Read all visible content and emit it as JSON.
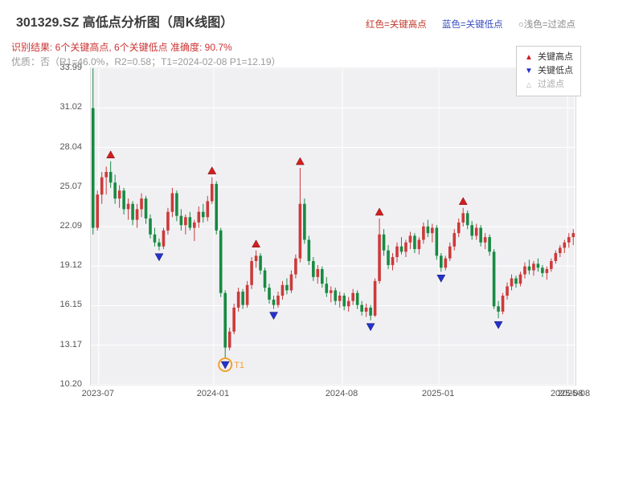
{
  "header": {
    "title": "301329.SZ 高低点分析图（周K线图）",
    "result_line": "识别结果: 6个关键高点, 6个关键低点  准确度: 90.7%",
    "quality_line": "优质：否（R1=46.0%，R2=0.58；T1=2024-02-08 P1=12.19）",
    "top_legend": [
      {
        "label": "红色=关键高点",
        "color": "#c0392b"
      },
      {
        "label": "蓝色=关键低点",
        "color": "#3a4fc0"
      },
      {
        "label": "○浅色=过滤点",
        "color": "#8a8a8a"
      }
    ]
  },
  "chart_legend": {
    "items": [
      {
        "label": "关键高点",
        "glyph": "▲",
        "color": "#d01f1f",
        "text_color": "#333333"
      },
      {
        "label": "关键低点",
        "glyph": "▼",
        "color": "#2433cc",
        "text_color": "#333333"
      },
      {
        "label": "过滤点",
        "glyph": "△",
        "color": "#aaaaaa",
        "text_color": "#aaaaaa"
      }
    ]
  },
  "chart_data": {
    "type": "candlestick",
    "title": "301329.SZ 高低点分析图（周K线图）",
    "symbol": "301329.SZ",
    "period": "weekly",
    "y_min": 10.2,
    "y_max": 33.99,
    "y_ticks": [
      "33.99",
      "31.02",
      "28.04",
      "25.07",
      "22.09",
      "19.12",
      "16.15",
      "13.17",
      "10.20"
    ],
    "x_ticks": [
      {
        "index": 1.3,
        "label": "2023-07"
      },
      {
        "index": 27.4,
        "label": "2024-01"
      },
      {
        "index": 56.6,
        "label": "2024-08"
      },
      {
        "index": 78.5,
        "label": "2025-01"
      },
      {
        "index": 107.7,
        "label": "2025-08"
      },
      {
        "index": 109.3,
        "label": "2025-08"
      }
    ],
    "grid": true,
    "colors": {
      "up": "#cc3a3a",
      "down": "#188a42",
      "high_marker": "#d01f1f",
      "low_marker": "#2433cc",
      "t1": "#f0a030",
      "plot_bg": "#f0f0f3",
      "grid": "#ffffff"
    },
    "candles": [
      [
        31.0,
        33.99,
        21.5,
        22.0
      ],
      [
        22.0,
        24.8,
        21.8,
        24.5
      ],
      [
        24.5,
        26.2,
        23.8,
        25.8
      ],
      [
        25.8,
        26.6,
        24.5,
        26.2
      ],
      [
        26.2,
        27.0,
        25.0,
        25.4
      ],
      [
        25.4,
        26.0,
        23.8,
        24.2
      ],
      [
        24.2,
        25.2,
        23.5,
        24.8
      ],
      [
        24.8,
        25.0,
        23.0,
        23.4
      ],
      [
        23.4,
        24.2,
        22.6,
        23.8
      ],
      [
        23.8,
        24.0,
        22.2,
        22.6
      ],
      [
        22.6,
        23.8,
        22.0,
        23.4
      ],
      [
        23.4,
        24.6,
        22.8,
        24.2
      ],
      [
        24.2,
        24.4,
        22.3,
        22.7
      ],
      [
        22.7,
        23.0,
        21.2,
        21.5
      ],
      [
        21.5,
        22.0,
        20.6,
        20.9
      ],
      [
        20.9,
        21.2,
        20.3,
        20.6
      ],
      [
        20.6,
        22.0,
        20.4,
        21.8
      ],
      [
        21.8,
        23.5,
        21.5,
        23.2
      ],
      [
        23.2,
        25.0,
        22.8,
        24.6
      ],
      [
        24.6,
        24.8,
        22.5,
        22.9
      ],
      [
        22.9,
        23.4,
        21.8,
        22.2
      ],
      [
        22.2,
        23.0,
        21.5,
        22.8
      ],
      [
        22.8,
        23.2,
        21.8,
        22.0
      ],
      [
        22.0,
        22.6,
        21.0,
        22.4
      ],
      [
        22.4,
        23.6,
        22.0,
        23.2
      ],
      [
        23.2,
        23.8,
        22.4,
        22.8
      ],
      [
        22.8,
        24.4,
        22.5,
        24.0
      ],
      [
        24.0,
        25.8,
        23.8,
        25.3
      ],
      [
        25.3,
        25.5,
        21.5,
        21.8
      ],
      [
        21.8,
        22.0,
        16.8,
        17.1
      ],
      [
        17.1,
        17.3,
        12.19,
        13.0
      ],
      [
        13.0,
        14.5,
        12.8,
        14.2
      ],
      [
        14.2,
        16.3,
        14.0,
        16.0
      ],
      [
        16.0,
        17.5,
        15.7,
        17.2
      ],
      [
        17.2,
        17.4,
        15.9,
        16.2
      ],
      [
        16.2,
        18.0,
        16.0,
        17.7
      ],
      [
        17.7,
        19.8,
        17.4,
        19.5
      ],
      [
        19.5,
        20.3,
        19.0,
        19.9
      ],
      [
        19.9,
        20.1,
        18.5,
        18.8
      ],
      [
        18.8,
        19.0,
        17.2,
        17.5
      ],
      [
        17.5,
        17.8,
        16.3,
        16.6
      ],
      [
        16.6,
        16.9,
        15.9,
        16.2
      ],
      [
        16.2,
        17.2,
        16.0,
        16.9
      ],
      [
        16.9,
        18.0,
        16.6,
        17.7
      ],
      [
        17.7,
        18.2,
        17.0,
        17.3
      ],
      [
        17.3,
        18.8,
        17.1,
        18.5
      ],
      [
        18.5,
        20.0,
        18.2,
        19.7
      ],
      [
        19.7,
        26.5,
        19.4,
        23.8
      ],
      [
        23.8,
        24.2,
        20.8,
        21.1
      ],
      [
        21.1,
        21.4,
        19.2,
        19.5
      ],
      [
        19.5,
        19.8,
        18.0,
        18.3
      ],
      [
        18.3,
        19.2,
        17.8,
        18.9
      ],
      [
        18.9,
        19.1,
        17.5,
        17.8
      ],
      [
        17.8,
        18.3,
        16.8,
        17.1
      ],
      [
        17.1,
        17.6,
        16.4,
        17.3
      ],
      [
        17.3,
        17.5,
        16.2,
        16.5
      ],
      [
        16.5,
        17.2,
        16.0,
        16.9
      ],
      [
        16.9,
        17.1,
        15.8,
        16.1
      ],
      [
        16.1,
        16.8,
        15.7,
        16.5
      ],
      [
        16.5,
        17.4,
        16.2,
        17.1
      ],
      [
        17.1,
        17.3,
        15.9,
        16.2
      ],
      [
        16.2,
        16.5,
        15.4,
        15.7
      ],
      [
        15.7,
        16.3,
        15.3,
        16.0
      ],
      [
        16.0,
        16.2,
        15.05,
        15.4
      ],
      [
        15.4,
        18.2,
        15.3,
        18.0
      ],
      [
        18.0,
        22.7,
        17.8,
        21.5
      ],
      [
        21.5,
        21.9,
        19.9,
        20.3
      ],
      [
        20.3,
        20.7,
        18.9,
        19.2
      ],
      [
        19.2,
        20.1,
        18.8,
        19.8
      ],
      [
        19.8,
        20.9,
        19.4,
        20.6
      ],
      [
        20.6,
        21.3,
        20.0,
        20.2
      ],
      [
        20.2,
        21.1,
        19.8,
        20.9
      ],
      [
        20.9,
        21.7,
        20.4,
        21.4
      ],
      [
        21.4,
        21.6,
        20.1,
        20.4
      ],
      [
        20.4,
        21.3,
        20.0,
        21.1
      ],
      [
        21.1,
        22.4,
        20.8,
        22.1
      ],
      [
        22.1,
        22.6,
        21.3,
        21.6
      ],
      [
        21.6,
        22.3,
        20.9,
        22.0
      ],
      [
        22.0,
        22.2,
        19.6,
        19.9
      ],
      [
        19.9,
        20.1,
        18.7,
        19.0
      ],
      [
        19.0,
        19.9,
        18.8,
        19.7
      ],
      [
        19.7,
        20.9,
        19.5,
        20.6
      ],
      [
        20.6,
        21.9,
        20.3,
        21.6
      ],
      [
        21.6,
        22.7,
        21.3,
        22.4
      ],
      [
        22.4,
        23.5,
        22.1,
        23.1
      ],
      [
        23.1,
        23.3,
        21.9,
        22.2
      ],
      [
        22.2,
        22.5,
        21.1,
        21.4
      ],
      [
        21.4,
        22.3,
        21.1,
        22.0
      ],
      [
        22.0,
        22.2,
        20.6,
        20.9
      ],
      [
        20.9,
        21.6,
        20.4,
        21.3
      ],
      [
        21.3,
        21.5,
        19.9,
        20.2
      ],
      [
        20.2,
        20.4,
        15.9,
        16.1
      ],
      [
        16.1,
        16.5,
        15.2,
        15.7
      ],
      [
        15.7,
        17.1,
        15.5,
        16.9
      ],
      [
        16.9,
        17.9,
        16.6,
        17.6
      ],
      [
        17.6,
        18.5,
        17.3,
        18.2
      ],
      [
        18.2,
        18.4,
        17.5,
        17.8
      ],
      [
        17.8,
        18.7,
        17.6,
        18.5
      ],
      [
        18.5,
        19.4,
        18.2,
        19.1
      ],
      [
        19.1,
        19.6,
        18.5,
        18.8
      ],
      [
        18.8,
        19.5,
        18.4,
        19.3
      ],
      [
        19.3,
        19.7,
        18.7,
        19.0
      ],
      [
        19.0,
        19.2,
        18.3,
        18.6
      ],
      [
        18.6,
        19.1,
        18.1,
        18.9
      ],
      [
        18.9,
        19.7,
        18.7,
        19.5
      ],
      [
        19.5,
        20.3,
        19.3,
        20.1
      ],
      [
        20.1,
        20.7,
        19.8,
        20.5
      ],
      [
        20.5,
        21.1,
        20.1,
        20.9
      ],
      [
        20.9,
        21.6,
        20.5,
        21.3
      ],
      [
        21.3,
        21.9,
        20.7,
        21.6
      ]
    ],
    "key_highs": [
      {
        "index": 4,
        "price": 27.0
      },
      {
        "index": 27,
        "price": 25.8
      },
      {
        "index": 37,
        "price": 20.3
      },
      {
        "index": 47,
        "price": 26.5
      },
      {
        "index": 65,
        "price": 22.7
      },
      {
        "index": 84,
        "price": 23.5
      }
    ],
    "key_lows": [
      {
        "index": 15,
        "price": 20.3
      },
      {
        "index": 30,
        "price": 12.19
      },
      {
        "index": 41,
        "price": 15.9
      },
      {
        "index": 63,
        "price": 15.05
      },
      {
        "index": 79,
        "price": 18.7
      },
      {
        "index": 92,
        "price": 15.2
      }
    ],
    "t1": {
      "index": 30,
      "price": 12.19,
      "label": "T1",
      "date": "2024-02-08"
    }
  }
}
